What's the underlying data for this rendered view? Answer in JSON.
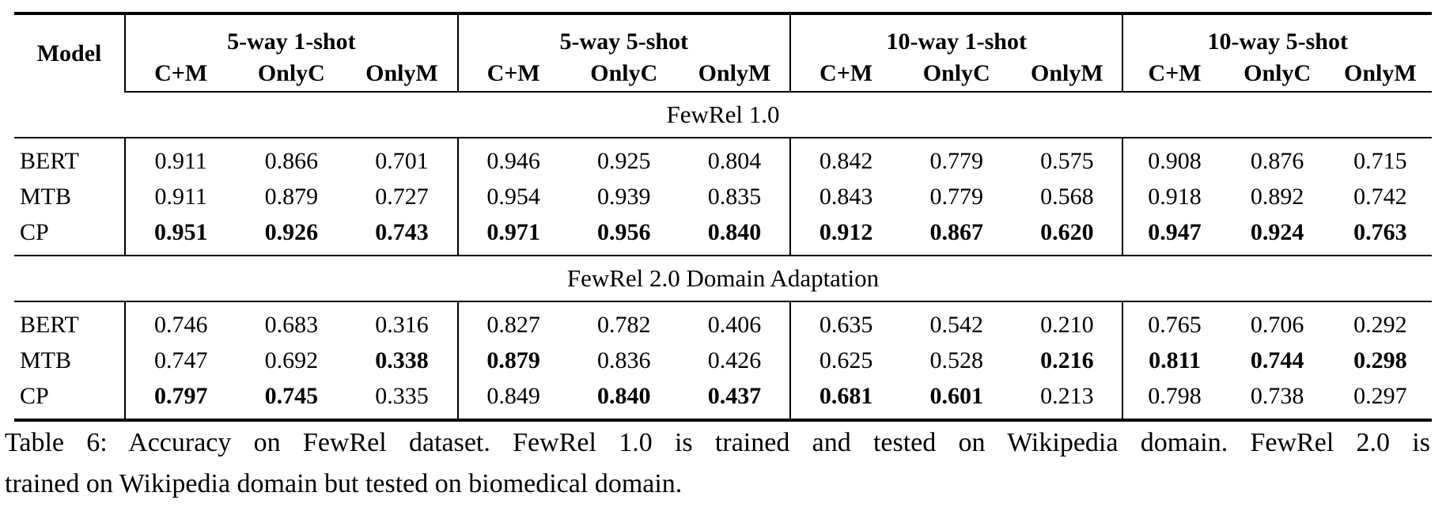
{
  "table": {
    "header": {
      "model_label": "Model",
      "groups": [
        {
          "label": "5-way 1-shot",
          "subcols": [
            "C+M",
            "OnlyC",
            "OnlyM"
          ]
        },
        {
          "label": "5-way 5-shot",
          "subcols": [
            "C+M",
            "OnlyC",
            "OnlyM"
          ]
        },
        {
          "label": "10-way 1-shot",
          "subcols": [
            "C+M",
            "OnlyC",
            "OnlyM"
          ]
        },
        {
          "label": "10-way 5-shot",
          "subcols": [
            "C+M",
            "OnlyC",
            "OnlyM"
          ]
        }
      ]
    },
    "sections": [
      {
        "title": "FewRel 1.0",
        "rows": [
          {
            "model": "BERT",
            "cells": [
              {
                "v": "0.911",
                "bold": false
              },
              {
                "v": "0.866",
                "bold": false
              },
              {
                "v": "0.701",
                "bold": false
              },
              {
                "v": "0.946",
                "bold": false
              },
              {
                "v": "0.925",
                "bold": false
              },
              {
                "v": "0.804",
                "bold": false
              },
              {
                "v": "0.842",
                "bold": false
              },
              {
                "v": "0.779",
                "bold": false
              },
              {
                "v": "0.575",
                "bold": false
              },
              {
                "v": "0.908",
                "bold": false
              },
              {
                "v": "0.876",
                "bold": false
              },
              {
                "v": "0.715",
                "bold": false
              }
            ]
          },
          {
            "model": "MTB",
            "cells": [
              {
                "v": "0.911",
                "bold": false
              },
              {
                "v": "0.879",
                "bold": false
              },
              {
                "v": "0.727",
                "bold": false
              },
              {
                "v": "0.954",
                "bold": false
              },
              {
                "v": "0.939",
                "bold": false
              },
              {
                "v": "0.835",
                "bold": false
              },
              {
                "v": "0.843",
                "bold": false
              },
              {
                "v": "0.779",
                "bold": false
              },
              {
                "v": "0.568",
                "bold": false
              },
              {
                "v": "0.918",
                "bold": false
              },
              {
                "v": "0.892",
                "bold": false
              },
              {
                "v": "0.742",
                "bold": false
              }
            ]
          },
          {
            "model": "CP",
            "cells": [
              {
                "v": "0.951",
                "bold": true
              },
              {
                "v": "0.926",
                "bold": true
              },
              {
                "v": "0.743",
                "bold": true
              },
              {
                "v": "0.971",
                "bold": true
              },
              {
                "v": "0.956",
                "bold": true
              },
              {
                "v": "0.840",
                "bold": true
              },
              {
                "v": "0.912",
                "bold": true
              },
              {
                "v": "0.867",
                "bold": true
              },
              {
                "v": "0.620",
                "bold": true
              },
              {
                "v": "0.947",
                "bold": true
              },
              {
                "v": "0.924",
                "bold": true
              },
              {
                "v": "0.763",
                "bold": true
              }
            ]
          }
        ]
      },
      {
        "title": "FewRel 2.0 Domain Adaptation",
        "rows": [
          {
            "model": "BERT",
            "cells": [
              {
                "v": "0.746",
                "bold": false
              },
              {
                "v": "0.683",
                "bold": false
              },
              {
                "v": "0.316",
                "bold": false
              },
              {
                "v": "0.827",
                "bold": false
              },
              {
                "v": "0.782",
                "bold": false
              },
              {
                "v": "0.406",
                "bold": false
              },
              {
                "v": "0.635",
                "bold": false
              },
              {
                "v": "0.542",
                "bold": false
              },
              {
                "v": "0.210",
                "bold": false
              },
              {
                "v": "0.765",
                "bold": false
              },
              {
                "v": "0.706",
                "bold": false
              },
              {
                "v": "0.292",
                "bold": false
              }
            ]
          },
          {
            "model": "MTB",
            "cells": [
              {
                "v": "0.747",
                "bold": false
              },
              {
                "v": "0.692",
                "bold": false
              },
              {
                "v": "0.338",
                "bold": true
              },
              {
                "v": "0.879",
                "bold": true
              },
              {
                "v": "0.836",
                "bold": false
              },
              {
                "v": "0.426",
                "bold": false
              },
              {
                "v": "0.625",
                "bold": false
              },
              {
                "v": "0.528",
                "bold": false
              },
              {
                "v": "0.216",
                "bold": true
              },
              {
                "v": "0.811",
                "bold": true
              },
              {
                "v": "0.744",
                "bold": true
              },
              {
                "v": "0.298",
                "bold": true
              }
            ]
          },
          {
            "model": "CP",
            "cells": [
              {
                "v": "0.797",
                "bold": true
              },
              {
                "v": "0.745",
                "bold": true
              },
              {
                "v": "0.335",
                "bold": false
              },
              {
                "v": "0.849",
                "bold": false
              },
              {
                "v": "0.840",
                "bold": true
              },
              {
                "v": "0.437",
                "bold": true
              },
              {
                "v": "0.681",
                "bold": true
              },
              {
                "v": "0.601",
                "bold": true
              },
              {
                "v": "0.213",
                "bold": false
              },
              {
                "v": "0.798",
                "bold": false
              },
              {
                "v": "0.738",
                "bold": false
              },
              {
                "v": "0.297",
                "bold": false
              }
            ]
          }
        ]
      }
    ]
  },
  "caption": {
    "lines": [
      "Table 6: Accuracy on FewRel dataset. FewRel 1.0 is trained and tested on Wikipedia domain. FewRel 2.0 is",
      "trained on Wikipedia domain but tested on biomedical domain."
    ]
  }
}
